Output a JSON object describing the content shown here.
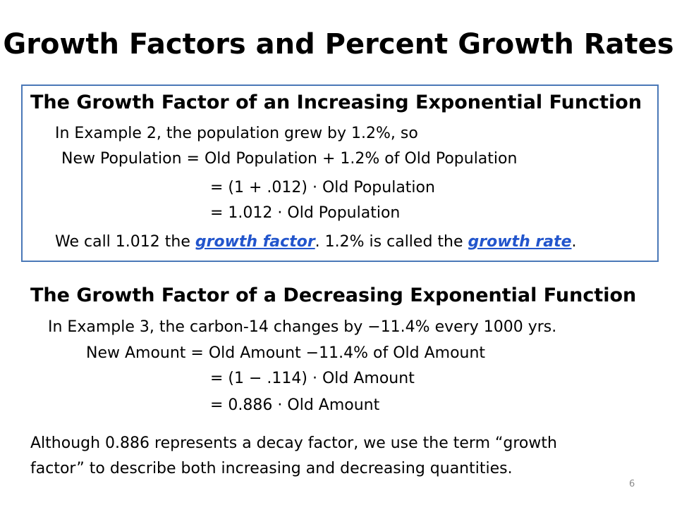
{
  "slide": {
    "title": "Growth Factors and Percent Growth Rates",
    "page_number": "6"
  },
  "increasing": {
    "heading": "The Growth Factor of an Increasing Exponential Function",
    "line1": "In Example 2, the population grew by 1.2%, so",
    "line2": "New Population = Old Population + 1.2% of Old Population",
    "line3": "= (1 + .012) · Old Population",
    "line4": "=  1.012 · Old Population",
    "line5_part1": "We call 1.012 the ",
    "line5_link1": "growth factor",
    "line5_part2": ".   1.2% is called the ",
    "line5_link2": "growth rate",
    "line5_part3": "."
  },
  "decreasing": {
    "heading": "The Growth Factor of a Decreasing Exponential Function",
    "line1": "In Example 3, the carbon-14 changes by −11.4% every 1000 yrs.",
    "line2": "New Amount = Old Amount −11.4% of Old Amount",
    "line3": "= (1 − .114) · Old Amount",
    "line4": "=  0.886 · Old Amount"
  },
  "conclusion": {
    "line1": "Although 0.886 represents a decay factor, we use the term   “growth",
    "line2": "factor” to describe both increasing and decreasing quantities."
  },
  "colors": {
    "box_border": "#4a78b7",
    "link": "#2255cc"
  }
}
